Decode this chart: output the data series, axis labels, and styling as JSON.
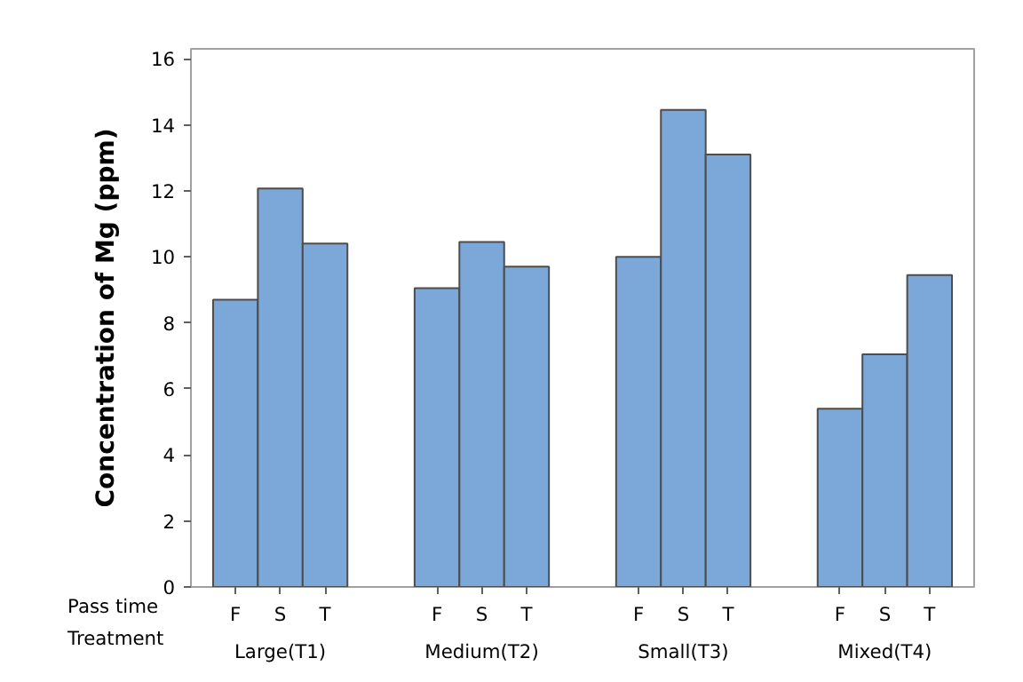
{
  "chart_data": {
    "type": "bar",
    "categories": [
      "Large(T1)",
      "Medium(T2)",
      "Small(T3)",
      "Mixed(T4)"
    ],
    "series": [
      {
        "name": "F",
        "color": "#7ba7d9",
        "values": [
          8.7,
          9.05,
          10.0,
          5.4
        ]
      },
      {
        "name": "S",
        "color": "#7ba7d9",
        "values": [
          12.07,
          10.45,
          14.45,
          7.05
        ]
      },
      {
        "name": "T",
        "color": "#7ba7d9",
        "values": [
          10.4,
          9.7,
          13.1,
          9.45
        ]
      }
    ],
    "xlabel": "Treatment",
    "annotations": [
      "Pass time"
    ],
    "ylabel": "Concentration of Mg (ppm)",
    "ylim": [
      0,
      16.3
    ],
    "yticks": [
      0,
      2,
      4,
      6,
      8,
      10,
      12,
      14,
      16
    ],
    "grid": false
  }
}
